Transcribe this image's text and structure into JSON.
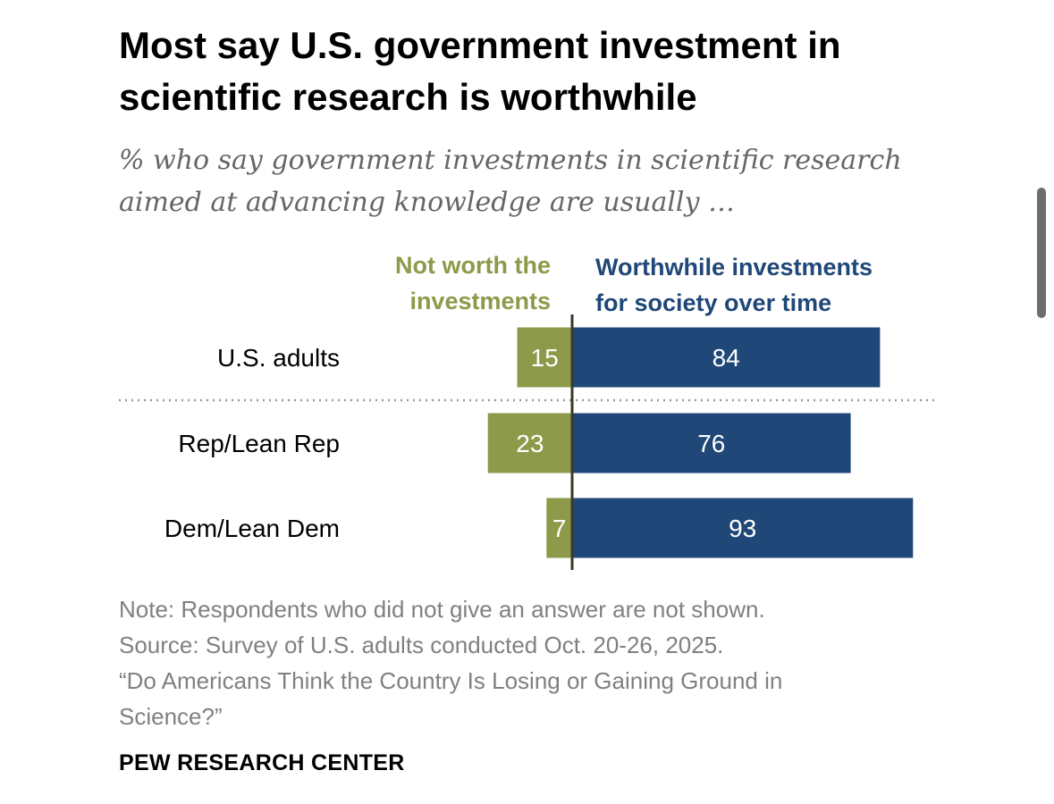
{
  "chart_data": {
    "type": "bar",
    "orientation": "horizontal",
    "stacked": "diverging",
    "title": "Most say U.S. government investment in scientific research is worthwhile",
    "subtitle": "% who say government investments in scientific research aimed at advancing knowledge are usually …",
    "categories": [
      "U.S. adults",
      "Rep/Lean Rep",
      "Dem/Lean Dem"
    ],
    "series": [
      {
        "name": "Not worth the investments",
        "color": "#8c9a4a",
        "side": "left",
        "values": [
          15,
          23,
          7
        ]
      },
      {
        "name": "Worthwhile investments for society over time",
        "color": "#1f4778",
        "side": "right",
        "values": [
          84,
          76,
          93
        ]
      }
    ],
    "legend_placement": "top, above each side of the bars",
    "grid": false,
    "separator_after_category": "U.S. adults"
  },
  "note": {
    "line1": "Note: Respondents who did not give an answer are not shown.",
    "line2": "Source: Survey of U.S. adults conducted Oct. 20-26, 2025.",
    "line3": "“Do Americans Think the Country Is Losing or Gaining Ground in",
    "line4": "Science?”"
  },
  "brand": "PEW RESEARCH CENTER"
}
